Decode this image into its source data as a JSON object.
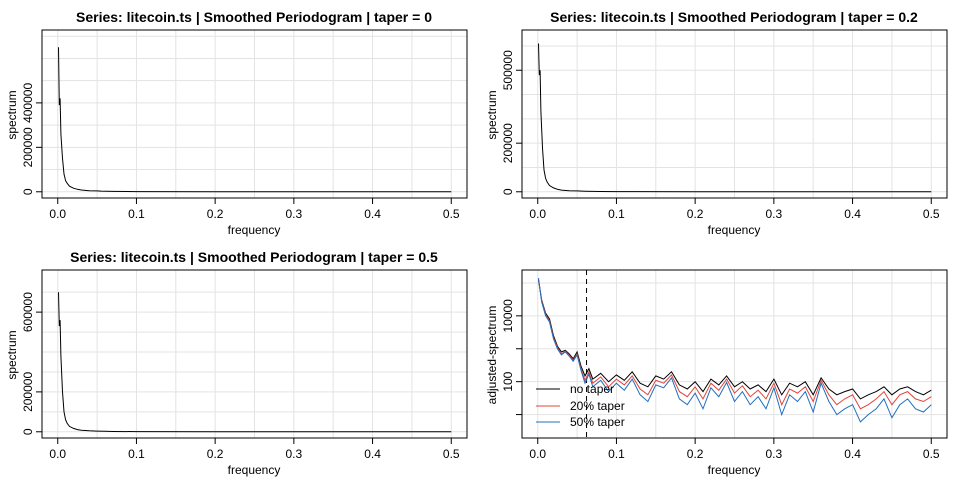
{
  "chart_data": [
    {
      "type": "line",
      "title": "Series: litecoin.ts  |  Smoothed Periodogram  |  taper = 0",
      "xlabel": "frequency",
      "ylabel": "spectrum",
      "xlim": [
        0,
        0.5
      ],
      "ylim": [
        0,
        700000
      ],
      "xticks": [
        "0.0",
        "0.1",
        "0.2",
        "0.3",
        "0.4",
        "0.5"
      ],
      "yticks": [
        "0",
        "200000",
        "400000"
      ],
      "grid": true,
      "series": [
        {
          "color": "#000000",
          "x": [
            0.001,
            0.002,
            0.003,
            0.004,
            0.006,
            0.008,
            0.01,
            0.012,
            0.015,
            0.02,
            0.025,
            0.03,
            0.04,
            0.05,
            0.055,
            0.07,
            0.1,
            0.2,
            0.3,
            0.4,
            0.5
          ],
          "y": [
            650000,
            390000,
            420000,
            260000,
            150000,
            80000,
            50000,
            38000,
            25000,
            16000,
            11000,
            8000,
            5000,
            4000,
            3000,
            1500,
            800,
            300,
            200,
            150,
            100
          ]
        }
      ]
    },
    {
      "type": "line",
      "title": "Series: litecoin.ts  |  Smoothed Periodogram  |  taper = 0.2",
      "xlabel": "frequency",
      "ylabel": "spectrum",
      "xlim": [
        0,
        0.5
      ],
      "ylim": [
        0,
        640000
      ],
      "xticks": [
        "0.0",
        "0.1",
        "0.2",
        "0.3",
        "0.4",
        "0.5"
      ],
      "yticks": [
        "0",
        "200000",
        "500000"
      ],
      "grid": true,
      "series": [
        {
          "color": "#000000",
          "x": [
            0.001,
            0.002,
            0.003,
            0.004,
            0.006,
            0.008,
            0.01,
            0.012,
            0.015,
            0.02,
            0.025,
            0.03,
            0.04,
            0.05,
            0.06,
            0.08,
            0.1,
            0.2,
            0.3,
            0.4,
            0.5
          ],
          "y": [
            610000,
            480000,
            500000,
            330000,
            180000,
            90000,
            55000,
            40000,
            26000,
            16000,
            10000,
            7000,
            4500,
            3500,
            2500,
            1200,
            700,
            300,
            200,
            150,
            100
          ]
        }
      ]
    },
    {
      "type": "line",
      "title": "Series: litecoin.ts  |  Smoothed Periodogram  |  taper = 0.5",
      "xlabel": "frequency",
      "ylabel": "spectrum",
      "xlim": [
        0,
        0.5
      ],
      "ylim": [
        0,
        780000
      ],
      "xticks": [
        "0.0",
        "0.1",
        "0.2",
        "0.3",
        "0.4",
        "0.5"
      ],
      "yticks": [
        "0",
        "200000",
        "600000"
      ],
      "grid": true,
      "series": [
        {
          "color": "#000000",
          "x": [
            0.001,
            0.002,
            0.003,
            0.004,
            0.006,
            0.008,
            0.01,
            0.012,
            0.015,
            0.02,
            0.025,
            0.03,
            0.04,
            0.05,
            0.06,
            0.07,
            0.1,
            0.2,
            0.3,
            0.4,
            0.5
          ],
          "y": [
            700000,
            530000,
            560000,
            380000,
            200000,
            100000,
            60000,
            42000,
            27000,
            17000,
            11000,
            7500,
            5000,
            3500,
            2500,
            1500,
            800,
            300,
            200,
            150,
            100
          ]
        }
      ]
    },
    {
      "type": "line",
      "title": "",
      "xlabel": "frequency",
      "ylabel": "adjusted-spectrum",
      "xlim": [
        0,
        0.5
      ],
      "ylim": [
        3,
        160000
      ],
      "yscale": "log",
      "xticks": [
        "0.0",
        "0.1",
        "0.2",
        "0.3",
        "0.4",
        "0.5"
      ],
      "yticks": [
        "10000",
        "100"
      ],
      "grid": true,
      "vline": 0.062,
      "legend": "bottom-left",
      "series": [
        {
          "name": "no taper",
          "color": "#000000",
          "x": [
            0.001,
            0.005,
            0.01,
            0.015,
            0.02,
            0.025,
            0.03,
            0.035,
            0.04,
            0.045,
            0.05,
            0.055,
            0.06,
            0.065,
            0.07,
            0.08,
            0.09,
            0.1,
            0.11,
            0.12,
            0.13,
            0.14,
            0.15,
            0.16,
            0.17,
            0.18,
            0.19,
            0.2,
            0.21,
            0.22,
            0.23,
            0.24,
            0.25,
            0.26,
            0.27,
            0.28,
            0.29,
            0.3,
            0.31,
            0.32,
            0.33,
            0.34,
            0.35,
            0.36,
            0.37,
            0.38,
            0.39,
            0.4,
            0.41,
            0.42,
            0.43,
            0.44,
            0.45,
            0.46,
            0.47,
            0.48,
            0.49,
            0.5
          ],
          "y": [
            120000,
            30000,
            12000,
            8000,
            2500,
            1200,
            800,
            900,
            700,
            500,
            800,
            300,
            150,
            250,
            120,
            180,
            100,
            160,
            110,
            200,
            90,
            70,
            150,
            120,
            200,
            80,
            60,
            100,
            50,
            120,
            80,
            150,
            70,
            100,
            60,
            80,
            50,
            120,
            40,
            90,
            70,
            100,
            40,
            130,
            60,
            40,
            50,
            60,
            30,
            40,
            50,
            70,
            40,
            60,
            70,
            50,
            40,
            55
          ]
        },
        {
          "name": "20% taper",
          "color": "#e0453a",
          "x": [
            0.001,
            0.005,
            0.01,
            0.015,
            0.02,
            0.025,
            0.03,
            0.035,
            0.04,
            0.045,
            0.05,
            0.055,
            0.06,
            0.065,
            0.07,
            0.08,
            0.09,
            0.1,
            0.11,
            0.12,
            0.13,
            0.14,
            0.15,
            0.16,
            0.17,
            0.18,
            0.19,
            0.2,
            0.21,
            0.22,
            0.23,
            0.24,
            0.25,
            0.26,
            0.27,
            0.28,
            0.29,
            0.3,
            0.31,
            0.32,
            0.33,
            0.34,
            0.35,
            0.36,
            0.37,
            0.38,
            0.39,
            0.4,
            0.41,
            0.42,
            0.43,
            0.44,
            0.45,
            0.46,
            0.47,
            0.48,
            0.49,
            0.5
          ],
          "y": [
            130000,
            28000,
            11000,
            7000,
            2200,
            1100,
            700,
            850,
            650,
            450,
            700,
            250,
            110,
            200,
            90,
            140,
            70,
            120,
            80,
            150,
            60,
            40,
            110,
            90,
            160,
            50,
            35,
            70,
            30,
            90,
            55,
            120,
            45,
            75,
            35,
            55,
            30,
            90,
            20,
            60,
            45,
            70,
            25,
            110,
            40,
            20,
            30,
            40,
            15,
            20,
            30,
            50,
            20,
            40,
            50,
            30,
            25,
            35
          ]
        },
        {
          "name": "50% taper",
          "color": "#1f6fc0",
          "x": [
            0.001,
            0.005,
            0.01,
            0.015,
            0.02,
            0.025,
            0.03,
            0.035,
            0.04,
            0.045,
            0.05,
            0.055,
            0.06,
            0.065,
            0.07,
            0.08,
            0.09,
            0.1,
            0.11,
            0.12,
            0.13,
            0.14,
            0.15,
            0.16,
            0.17,
            0.18,
            0.19,
            0.2,
            0.21,
            0.22,
            0.23,
            0.24,
            0.25,
            0.26,
            0.27,
            0.28,
            0.29,
            0.3,
            0.31,
            0.32,
            0.33,
            0.34,
            0.35,
            0.36,
            0.37,
            0.38,
            0.39,
            0.4,
            0.41,
            0.42,
            0.43,
            0.44,
            0.45,
            0.46,
            0.47,
            0.48,
            0.49,
            0.5
          ],
          "y": [
            140000,
            26000,
            10000,
            6500,
            2000,
            1000,
            650,
            800,
            600,
            420,
            650,
            220,
            90,
            170,
            70,
            110,
            50,
            90,
            55,
            120,
            40,
            25,
            80,
            65,
            130,
            30,
            20,
            45,
            15,
            65,
            35,
            95,
            25,
            50,
            20,
            35,
            15,
            65,
            10,
            40,
            25,
            50,
            12,
            90,
            25,
            10,
            15,
            20,
            6,
            10,
            15,
            30,
            8,
            20,
            30,
            15,
            12,
            20
          ]
        }
      ]
    }
  ]
}
